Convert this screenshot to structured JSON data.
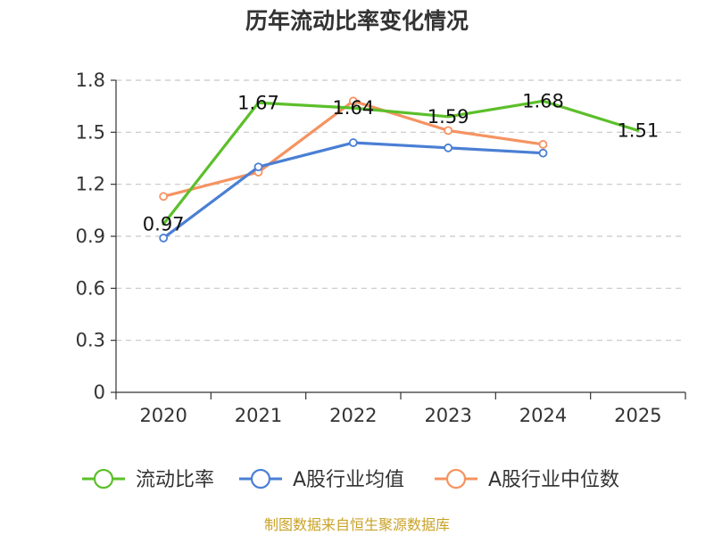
{
  "chart_data": {
    "type": "line",
    "title": "历年流动比率变化情况",
    "categories": [
      "2020",
      "2021",
      "2022",
      "2023",
      "2024",
      "2025"
    ],
    "ylim": [
      0,
      1.8
    ],
    "yticks": [
      0,
      0.3,
      0.6,
      0.9,
      1.2,
      1.5,
      1.8
    ],
    "ytick_labels": [
      "0",
      "0.3",
      "0.6",
      "0.9",
      "1.2",
      "1.5",
      "1.8"
    ],
    "grid": true,
    "legend_position": "bottom",
    "series": [
      {
        "name": "流动比率",
        "color": "#5cbf2a",
        "values": [
          0.97,
          1.67,
          1.64,
          1.59,
          1.68,
          1.51
        ],
        "data_labels": [
          "0.97",
          "1.67",
          "1.64",
          "1.59",
          "1.68",
          "1.51"
        ],
        "markers": false
      },
      {
        "name": "A股行业均值",
        "color": "#4a7fd4",
        "values": [
          0.89,
          1.3,
          1.44,
          1.41,
          1.38,
          null
        ],
        "markers": true
      },
      {
        "name": "A股行业中位数",
        "color": "#f59361",
        "values": [
          1.13,
          1.27,
          1.68,
          1.51,
          1.43,
          null
        ],
        "markers": true
      }
    ]
  },
  "source_note": "制图数据来自恒生聚源数据库"
}
